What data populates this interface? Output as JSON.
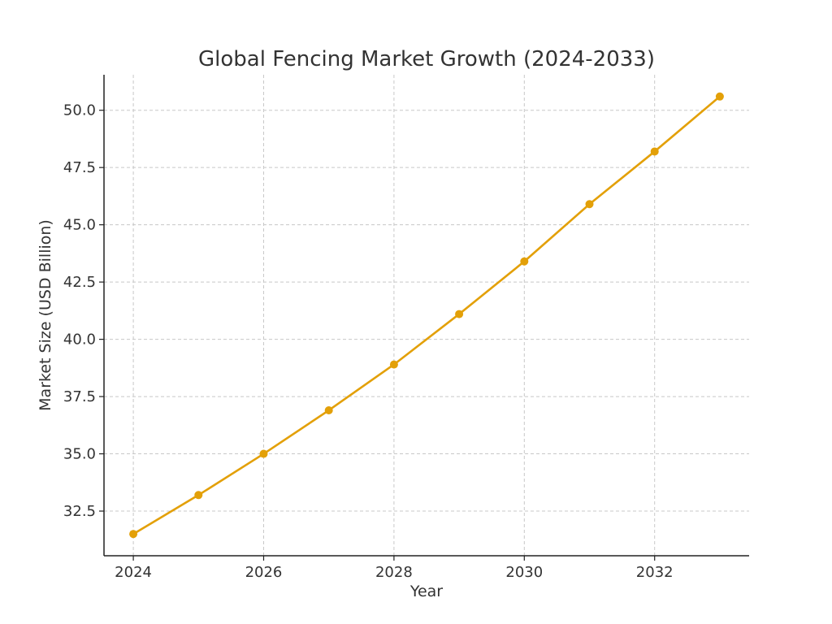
{
  "chart_data": {
    "type": "line",
    "title": "Global Fencing Market Growth (2024-2033)",
    "xlabel": "Year",
    "ylabel": "Market Size (USD Billion)",
    "x": [
      2024,
      2025,
      2026,
      2027,
      2028,
      2029,
      2030,
      2031,
      2032,
      2033
    ],
    "series": [
      {
        "values": [
          31.5,
          33.2,
          35.0,
          36.9,
          38.9,
          41.1,
          43.4,
          45.9,
          48.2,
          50.6
        ],
        "color": "#e3a008"
      }
    ],
    "xlim": [
      2023.55,
      2033.45
    ],
    "ylim": [
      30.55,
      51.55
    ],
    "x_ticks": [
      2024,
      2026,
      2028,
      2030,
      2032
    ],
    "x_tick_labels": [
      "2024",
      "2026",
      "2028",
      "2030",
      "2032"
    ],
    "y_ticks": [
      32.5,
      35.0,
      37.5,
      40.0,
      42.5,
      45.0,
      47.5,
      50.0
    ],
    "y_tick_labels": [
      "32.5",
      "35.0",
      "37.5",
      "40.0",
      "42.5",
      "45.0",
      "47.5",
      "50.0"
    ],
    "grid": true,
    "marker": "circle"
  }
}
